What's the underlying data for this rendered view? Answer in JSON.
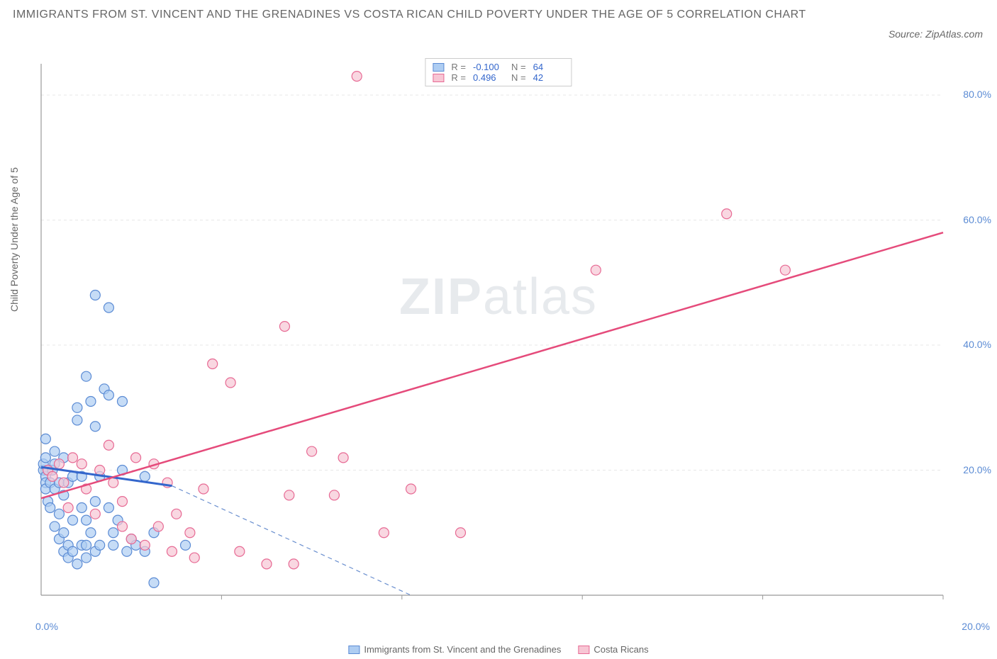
{
  "title": "IMMIGRANTS FROM ST. VINCENT AND THE GRENADINES VS COSTA RICAN CHILD POVERTY UNDER THE AGE OF 5 CORRELATION CHART",
  "source": "Source: ZipAtlas.com",
  "watermark": {
    "bold": "ZIP",
    "light": "atlas"
  },
  "yaxis_label": "Child Poverty Under the Age of 5",
  "chart": {
    "type": "scatter",
    "xlim": [
      0,
      20
    ],
    "ylim": [
      0,
      85
    ],
    "x_ticks": [
      0,
      4,
      8,
      12,
      16,
      20
    ],
    "x_tick_labels_shown": {
      "0": "0.0%",
      "20": "20.0%"
    },
    "y_gridlines": [
      20,
      40,
      60,
      80
    ],
    "y_tick_labels": [
      "20.0%",
      "40.0%",
      "60.0%",
      "80.0%"
    ],
    "grid_color": "#e7e7e7",
    "axis_color": "#999999",
    "background_color": "#ffffff",
    "tick_label_color": "#5b8bd4",
    "series": [
      {
        "name": "Immigrants from St. Vincent and the Grenadines",
        "key": "svg_series",
        "marker_fill": "#aecdf2",
        "marker_stroke": "#5b8bd4",
        "marker_opacity": 0.7,
        "marker_size": 7,
        "trend_line_color": "#3366cc",
        "trend_dash_color": "#6a8fcf",
        "R": "-0.100",
        "N": "64",
        "trend": {
          "x1": 0,
          "y1": 20.5,
          "x2": 2.9,
          "y2": 17.5,
          "dash_x2": 8.2,
          "dash_y2": 0
        },
        "points": [
          [
            0.05,
            20
          ],
          [
            0.05,
            21
          ],
          [
            0.1,
            19
          ],
          [
            0.1,
            22
          ],
          [
            0.1,
            25
          ],
          [
            0.1,
            18
          ],
          [
            0.15,
            20
          ],
          [
            0.1,
            17
          ],
          [
            0.15,
            15
          ],
          [
            0.2,
            14
          ],
          [
            0.2,
            18
          ],
          [
            0.25,
            20
          ],
          [
            0.3,
            23
          ],
          [
            0.3,
            21
          ],
          [
            0.3,
            17
          ],
          [
            0.3,
            11
          ],
          [
            0.4,
            13
          ],
          [
            0.4,
            9
          ],
          [
            0.4,
            18
          ],
          [
            0.5,
            16
          ],
          [
            0.5,
            10
          ],
          [
            0.5,
            7
          ],
          [
            0.5,
            22
          ],
          [
            0.6,
            18
          ],
          [
            0.6,
            6
          ],
          [
            0.6,
            8
          ],
          [
            0.7,
            12
          ],
          [
            0.7,
            7
          ],
          [
            0.7,
            19
          ],
          [
            0.8,
            30
          ],
          [
            0.8,
            28
          ],
          [
            0.8,
            5
          ],
          [
            0.9,
            8
          ],
          [
            0.9,
            14
          ],
          [
            0.9,
            19
          ],
          [
            1.0,
            35
          ],
          [
            1.0,
            12
          ],
          [
            1.0,
            6
          ],
          [
            1.0,
            8
          ],
          [
            1.1,
            31
          ],
          [
            1.1,
            10
          ],
          [
            1.2,
            48
          ],
          [
            1.2,
            27
          ],
          [
            1.2,
            15
          ],
          [
            1.2,
            7
          ],
          [
            1.3,
            8
          ],
          [
            1.3,
            19
          ],
          [
            1.4,
            33
          ],
          [
            1.5,
            46
          ],
          [
            1.5,
            32
          ],
          [
            1.5,
            14
          ],
          [
            1.6,
            10
          ],
          [
            1.6,
            8
          ],
          [
            1.7,
            12
          ],
          [
            1.8,
            31
          ],
          [
            1.8,
            20
          ],
          [
            1.9,
            7
          ],
          [
            2.0,
            9
          ],
          [
            2.1,
            8
          ],
          [
            2.3,
            7
          ],
          [
            2.3,
            19
          ],
          [
            2.5,
            10
          ],
          [
            2.5,
            2
          ],
          [
            3.2,
            8
          ]
        ]
      },
      {
        "name": "Costa Ricans",
        "key": "cr_series",
        "marker_fill": "#f7c6d4",
        "marker_stroke": "#e76a94",
        "marker_opacity": 0.7,
        "marker_size": 7,
        "trend_line_color": "#e54b7b",
        "R": "0.496",
        "N": "42",
        "trend": {
          "x1": 0,
          "y1": 15.5,
          "x2": 20,
          "y2": 58
        },
        "points": [
          [
            0.15,
            20
          ],
          [
            0.25,
            19
          ],
          [
            0.4,
            21
          ],
          [
            0.5,
            18
          ],
          [
            0.6,
            14
          ],
          [
            0.7,
            22
          ],
          [
            0.9,
            21
          ],
          [
            1.0,
            17
          ],
          [
            1.2,
            13
          ],
          [
            1.3,
            20
          ],
          [
            1.5,
            24
          ],
          [
            1.6,
            18
          ],
          [
            1.8,
            11
          ],
          [
            1.8,
            15
          ],
          [
            2.0,
            9
          ],
          [
            2.1,
            22
          ],
          [
            2.3,
            8
          ],
          [
            2.5,
            21
          ],
          [
            2.6,
            11
          ],
          [
            2.8,
            18
          ],
          [
            2.9,
            7
          ],
          [
            3.0,
            13
          ],
          [
            3.3,
            10
          ],
          [
            3.4,
            6
          ],
          [
            3.6,
            17
          ],
          [
            3.8,
            37
          ],
          [
            4.2,
            34
          ],
          [
            4.4,
            7
          ],
          [
            5.0,
            5
          ],
          [
            5.4,
            43
          ],
          [
            5.5,
            16
          ],
          [
            5.6,
            5
          ],
          [
            6.0,
            23
          ],
          [
            6.5,
            16
          ],
          [
            6.7,
            22
          ],
          [
            7.0,
            83
          ],
          [
            7.6,
            10
          ],
          [
            8.2,
            17
          ],
          [
            9.3,
            10
          ],
          [
            12.3,
            52
          ],
          [
            15.2,
            61
          ],
          [
            16.5,
            52
          ]
        ]
      }
    ]
  },
  "legend_bottom": [
    {
      "label": "Immigrants from St. Vincent and the Grenadines",
      "fill": "#aecdf2",
      "stroke": "#5b8bd4"
    },
    {
      "label": "Costa Ricans",
      "fill": "#f7c6d4",
      "stroke": "#e76a94"
    }
  ]
}
